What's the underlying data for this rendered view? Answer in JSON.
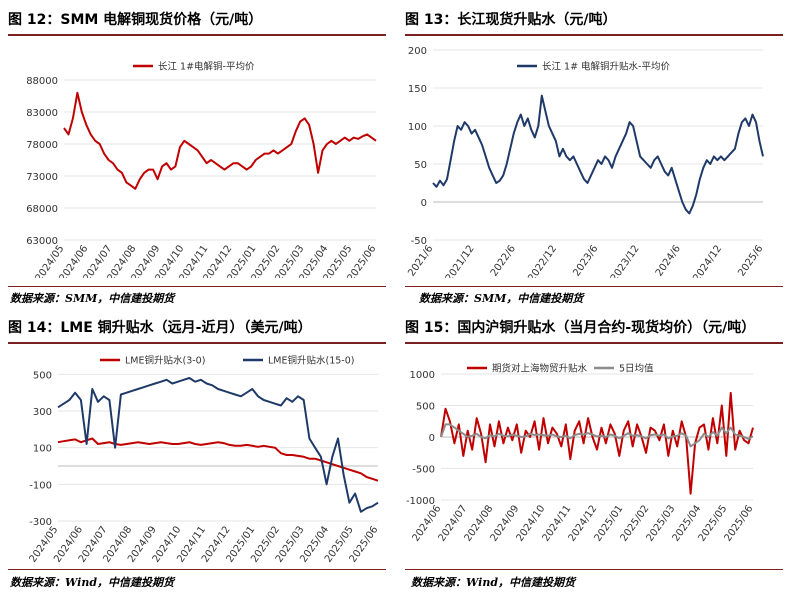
{
  "panels": [
    {
      "title": "图 12：SMM 电解铜现货价格（元/吨）",
      "source": "数据来源：SMM，中信建投期货",
      "chart_data": {
        "type": "line",
        "ylim": [
          63000,
          88000
        ],
        "yticks": [
          "88000",
          "83000",
          "78000",
          "73000",
          "68000",
          "63000"
        ],
        "ytick_values": [
          88000,
          83000,
          78000,
          73000,
          68000,
          63000
        ],
        "xticks": [
          "2024/05",
          "2024/06",
          "2024/07",
          "2024/08",
          "2024/09",
          "2024/10",
          "2024/11",
          "2024/12",
          "2025/01",
          "2025/02",
          "2025/03",
          "2025/04",
          "2025/05",
          "2025/06"
        ],
        "legend_position": "top-center",
        "series": [
          {
            "name": "长江 1#电解铜-平均价",
            "color": "#c00000",
            "values": [
              80500,
              79500,
              82000,
              86000,
              83000,
              81000,
              79500,
              78500,
              78000,
              76500,
              75500,
              75000,
              74000,
              73500,
              72000,
              71500,
              71000,
              72500,
              73500,
              74000,
              74000,
              72500,
              74500,
              75000,
              74000,
              74500,
              77500,
              78500,
              78000,
              77500,
              77000,
              76000,
              75000,
              75500,
              75000,
              74500,
              74000,
              74500,
              75000,
              75000,
              74500,
              74000,
              74500,
              75500,
              76000,
              76500,
              76500,
              77000,
              76500,
              77000,
              77500,
              78000,
              80000,
              81500,
              82000,
              81000,
              78000,
              73500,
              77000,
              78000,
              78500,
              78000,
              78500,
              79000,
              78500,
              79000,
              78800,
              79200,
              79500,
              79000,
              78500
            ]
          }
        ]
      }
    },
    {
      "title": "图 13：长江现货升贴水（元/吨）",
      "source": "数据来源：SMM，中信建投期货",
      "chart_data": {
        "type": "line",
        "ylim": [
          -50,
          200
        ],
        "yticks": [
          "200",
          "150",
          "100",
          "50",
          "0",
          "-50"
        ],
        "ytick_values": [
          200,
          150,
          100,
          50,
          0,
          -50
        ],
        "xticks": [
          "2021/6",
          "2021/12",
          "2022/6",
          "2022/12",
          "2023/6",
          "2023/12",
          "2024/6",
          "2024/12",
          "2025/6"
        ],
        "legend_position": "top-center",
        "series": [
          {
            "name": "长江 1# 电解铜升贴水-平均价",
            "color": "#1f3a68",
            "values": [
              25,
              20,
              28,
              22,
              30,
              55,
              80,
              100,
              95,
              105,
              100,
              90,
              95,
              85,
              75,
              60,
              45,
              35,
              25,
              28,
              35,
              50,
              70,
              90,
              105,
              115,
              100,
              110,
              95,
              85,
              100,
              140,
              120,
              100,
              90,
              80,
              60,
              70,
              60,
              55,
              60,
              50,
              40,
              30,
              25,
              35,
              45,
              55,
              50,
              60,
              55,
              45,
              60,
              70,
              80,
              90,
              105,
              100,
              80,
              60,
              55,
              50,
              45,
              55,
              60,
              50,
              40,
              35,
              45,
              30,
              15,
              0,
              -10,
              -15,
              -5,
              10,
              30,
              45,
              55,
              50,
              60,
              55,
              60,
              55,
              60,
              65,
              70,
              90,
              105,
              110,
              100,
              115,
              105,
              80,
              60
            ]
          }
        ]
      }
    },
    {
      "title": "图 14：LME 铜升贴水（远月-近月）（美元/吨）",
      "source": "数据来源：Wind，中信建投期货",
      "chart_data": {
        "type": "line",
        "ylim": [
          -300,
          600
        ],
        "yticks": [
          "500",
          "300",
          "100",
          "-100",
          "-300"
        ],
        "ytick_values": [
          500,
          300,
          100,
          -100,
          -300
        ],
        "xticks": [
          "2024/05",
          "2024/06",
          "2024/07",
          "2024/08",
          "2024/09",
          "2024/10",
          "2024/11",
          "2024/12",
          "2025/01",
          "2025/02",
          "2025/03",
          "2025/04",
          "2025/05",
          "2025/06"
        ],
        "legend_position": "top-left",
        "series": [
          {
            "name": "LME铜升贴水(3-0)",
            "color": "#c00000",
            "values": [
              130,
              135,
              140,
              145,
              130,
              140,
              150,
              120,
              125,
              130,
              120,
              115,
              120,
              125,
              130,
              125,
              120,
              125,
              130,
              125,
              120,
              120,
              125,
              130,
              120,
              115,
              120,
              125,
              130,
              125,
              115,
              110,
              110,
              115,
              110,
              105,
              110,
              105,
              100,
              70,
              60,
              60,
              55,
              50,
              40,
              40,
              30,
              20,
              10,
              0,
              -10,
              -20,
              -30,
              -40,
              -60,
              -70,
              -80
            ]
          },
          {
            "name": "LME铜升贴水(15-0)",
            "color": "#1f3a68",
            "values": [
              320,
              340,
              360,
              400,
              360,
              120,
              420,
              350,
              380,
              360,
              100,
              390,
              400,
              410,
              420,
              430,
              440,
              450,
              460,
              470,
              450,
              460,
              470,
              480,
              460,
              470,
              450,
              440,
              420,
              410,
              400,
              390,
              380,
              400,
              420,
              380,
              360,
              350,
              340,
              330,
              370,
              350,
              380,
              360,
              150,
              100,
              50,
              -100,
              50,
              150,
              -50,
              -200,
              -150,
              -250,
              -230,
              -220,
              -200
            ]
          }
        ]
      }
    },
    {
      "title": "图 15：国内沪铜升贴水（当月合约-现货均价）（元/吨）",
      "source": "数据来源：Wind，中信建投期货",
      "chart_data": {
        "type": "line",
        "ylim": [
          -1000,
          1000
        ],
        "yticks": [
          "1000",
          "500",
          "0",
          "-500",
          "-1000"
        ],
        "ytick_values": [
          1000,
          500,
          0,
          -500,
          -1000
        ],
        "xticks": [
          "2024/06",
          "2024/07",
          "2024/08",
          "2024/09",
          "2024/10",
          "2024/11",
          "2024/12",
          "2025/01",
          "2025/02",
          "2025/03",
          "2025/04",
          "2025/05",
          "2025/06"
        ],
        "legend_position": "top-center",
        "series": [
          {
            "name": "期货对上海物贸升贴水",
            "color": "#c00000",
            "values": [
              0,
              450,
              250,
              -100,
              200,
              -300,
              100,
              -200,
              300,
              50,
              -400,
              200,
              -150,
              250,
              -100,
              150,
              -50,
              200,
              -250,
              100,
              0,
              250,
              -200,
              300,
              -100,
              150,
              50,
              -150,
              200,
              -350,
              100,
              250,
              -100,
              300,
              0,
              -200,
              150,
              -100,
              200,
              50,
              -300,
              100,
              250,
              -150,
              200,
              0,
              -250,
              150,
              100,
              -50,
              200,
              -300,
              100,
              -150,
              250,
              0,
              -900,
              -100,
              150,
              200,
              -200,
              300,
              -100,
              500,
              -300,
              700,
              -200,
              100,
              -50,
              -100,
              150
            ]
          },
          {
            "name": "5日均值",
            "color": "#8c8c8c",
            "values": [
              0,
              200,
              200,
              150,
              100,
              50,
              0,
              20,
              50,
              0,
              -20,
              30,
              10,
              50,
              20,
              10,
              40,
              20,
              0,
              10,
              50,
              30,
              40,
              30,
              20,
              40,
              10,
              0,
              20,
              -20,
              30,
              50,
              40,
              60,
              40,
              10,
              20,
              0,
              40,
              20,
              -20,
              20,
              60,
              20,
              30,
              10,
              -20,
              30,
              40,
              20,
              40,
              -20,
              10,
              20,
              60,
              20,
              -150,
              -100,
              -50,
              50,
              0,
              80,
              20,
              150,
              60,
              150,
              40,
              20,
              0,
              -30,
              10
            ]
          }
        ]
      }
    }
  ]
}
